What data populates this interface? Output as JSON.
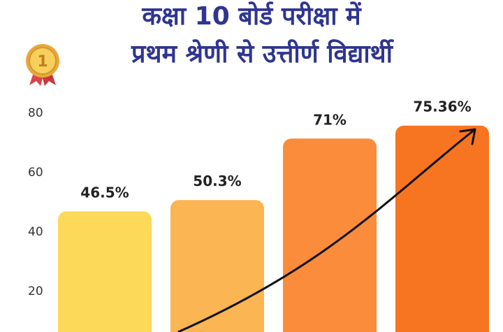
{
  "title": {
    "line1": "कक्षा 10 बोर्ड परीक्षा में",
    "line2": "प्रथम श्रेणी से उत्तीर्ण विद्यार्थी"
  },
  "medal": {
    "numeral": "1"
  },
  "colors": {
    "title": "#2f3590",
    "bars": [
      "#fdd95a",
      "#fbb552",
      "#fa8c3c",
      "#f77521"
    ],
    "axis_text": "#333333",
    "arrow": "#111111"
  },
  "chart_data": {
    "type": "bar",
    "categories": [
      "",
      "",
      "",
      ""
    ],
    "values": [
      46.5,
      50.3,
      71,
      75.36
    ],
    "data_labels": [
      "46.5%",
      "50.3%",
      "71%",
      "75.36%"
    ],
    "y_ticks": [
      "20",
      "40",
      "60",
      "80"
    ],
    "ylim": [
      0,
      80
    ],
    "grid": false,
    "title": "",
    "xlabel": "",
    "ylabel": ""
  }
}
